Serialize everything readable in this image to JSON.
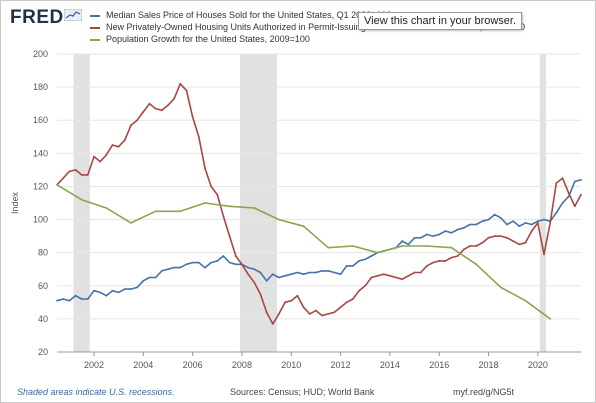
{
  "header": {
    "logo_text": "FRED",
    "tooltip": "View this chart in your browser."
  },
  "footer": {
    "recessions_note": "Shaded areas indicate U.S. recessions.",
    "sources": "Sources: Census; HUD; World Bank",
    "short_url": "myf.red/g/NG5t"
  },
  "colors": {
    "median_price": "#4572a7",
    "permits": "#aa4643",
    "population": "#89a54e",
    "recession": "#e1e1e1"
  },
  "chart_data": {
    "type": "line",
    "title": "",
    "xlabel": "",
    "ylabel": "Index",
    "xlim": [
      2000.5,
      2021.75
    ],
    "ylim": [
      20,
      200
    ],
    "y_ticks": [
      20,
      40,
      60,
      80,
      100,
      120,
      140,
      160,
      180,
      200
    ],
    "x_ticks": [
      2002,
      2004,
      2006,
      2008,
      2010,
      2012,
      2014,
      2016,
      2018,
      2020
    ],
    "grid": true,
    "legend_position": "top-left",
    "recessions": [
      [
        2001.17,
        2001.83
      ],
      [
        2007.92,
        2009.42
      ],
      [
        2020.08,
        2020.33
      ]
    ],
    "series": [
      {
        "name": "Median Sales Price of Houses Sold for the United States, Q1 2020=100",
        "color_key": "median_price",
        "x": [
          2000.5,
          2000.75,
          2001,
          2001.25,
          2001.5,
          2001.75,
          2002,
          2002.25,
          2002.5,
          2002.75,
          2003,
          2003.25,
          2003.5,
          2003.75,
          2004,
          2004.25,
          2004.5,
          2004.75,
          2005,
          2005.25,
          2005.5,
          2005.75,
          2006,
          2006.25,
          2006.5,
          2006.75,
          2007,
          2007.25,
          2007.5,
          2007.75,
          2008,
          2008.25,
          2008.5,
          2008.75,
          2009,
          2009.25,
          2009.5,
          2009.75,
          2010,
          2010.25,
          2010.5,
          2010.75,
          2011,
          2011.25,
          2011.5,
          2011.75,
          2012,
          2012.25,
          2012.5,
          2012.75,
          2013,
          2013.25,
          2013.5,
          2013.75,
          2014,
          2014.25,
          2014.5,
          2014.75,
          2015,
          2015.25,
          2015.5,
          2015.75,
          2016,
          2016.25,
          2016.5,
          2016.75,
          2017,
          2017.25,
          2017.5,
          2017.75,
          2018,
          2018.25,
          2018.5,
          2018.75,
          2019,
          2019.25,
          2019.5,
          2019.75,
          2020,
          2020.25,
          2020.5,
          2020.75,
          2021,
          2021.25,
          2021.5,
          2021.75
        ],
        "values": [
          51,
          52,
          51,
          54,
          52,
          52,
          57,
          56,
          54,
          57,
          56,
          58,
          58,
          59,
          63,
          65,
          65,
          69,
          70,
          71,
          71,
          73,
          74,
          74,
          71,
          74,
          75,
          78,
          74,
          73,
          73,
          71,
          70,
          68,
          63,
          67,
          65,
          66,
          67,
          68,
          67,
          68,
          68,
          69,
          69,
          68,
          67,
          72,
          72,
          75,
          76,
          78,
          80,
          81,
          82,
          83,
          87,
          85,
          89,
          89,
          91,
          90,
          91,
          93,
          92,
          94,
          95,
          97,
          97,
          99,
          100,
          103,
          101,
          97,
          99,
          96,
          98,
          97,
          99,
          100,
          99,
          104,
          110,
          114,
          123,
          124
        ],
        "display": "123.7"
      },
      {
        "name": "New Privately-Owned Housing Units Authorized in Permit-Issuing Places for the United States, 2009=100",
        "color_key": "permits",
        "x": [
          2000.5,
          2000.75,
          2001,
          2001.25,
          2001.5,
          2001.75,
          2002,
          2002.25,
          2002.5,
          2002.75,
          2003,
          2003.25,
          2003.5,
          2003.75,
          2004,
          2004.25,
          2004.5,
          2004.75,
          2005,
          2005.25,
          2005.5,
          2005.75,
          2006,
          2006.25,
          2006.5,
          2006.75,
          2007,
          2007.25,
          2007.5,
          2007.75,
          2008,
          2008.25,
          2008.5,
          2008.75,
          2009,
          2009.25,
          2009.5,
          2009.75,
          2010,
          2010.25,
          2010.5,
          2010.75,
          2011,
          2011.25,
          2011.5,
          2011.75,
          2012,
          2012.25,
          2012.5,
          2012.75,
          2013,
          2013.25,
          2013.5,
          2013.75,
          2014,
          2014.25,
          2014.5,
          2014.75,
          2015,
          2015.25,
          2015.5,
          2015.75,
          2016,
          2016.25,
          2016.5,
          2016.75,
          2017,
          2017.25,
          2017.5,
          2017.75,
          2018,
          2018.25,
          2018.5,
          2018.75,
          2019,
          2019.25,
          2019.5,
          2019.75,
          2020,
          2020.25,
          2020.5,
          2020.75,
          2021,
          2021.25,
          2021.5,
          2021.75
        ],
        "values": [
          121,
          125,
          129,
          130,
          127,
          127,
          138,
          135,
          139,
          145,
          144,
          148,
          157,
          160,
          165,
          170,
          167,
          166,
          169,
          173,
          182,
          178,
          162,
          150,
          131,
          120,
          115,
          102,
          90,
          78,
          73,
          67,
          62,
          55,
          44,
          37,
          43,
          50,
          51,
          54,
          47,
          43,
          45,
          42,
          43,
          44,
          47,
          50,
          52,
          57,
          60,
          65,
          66,
          67,
          66,
          65,
          64,
          66,
          68,
          68,
          72,
          74,
          75,
          75,
          77,
          78,
          82,
          84,
          84,
          86,
          89,
          90,
          90,
          89,
          87,
          85,
          86,
          93,
          98,
          79,
          98,
          122,
          125,
          116,
          108,
          115
        ],
        "display": "114.6"
      },
      {
        "name": "Population Growth for the United States, 2009=100",
        "color_key": "population",
        "x": [
          2000.5,
          2001.5,
          2002.5,
          2003.5,
          2004.5,
          2005.5,
          2006.5,
          2007.5,
          2008.5,
          2009.5,
          2010.5,
          2011.5,
          2012.5,
          2013.5,
          2014.5,
          2015.5,
          2016.5,
          2017.5,
          2018.5,
          2019.5,
          2020.5
        ],
        "values": [
          121,
          112,
          107,
          98,
          105,
          105,
          110,
          108,
          107,
          100,
          96,
          83,
          84,
          80,
          84,
          84,
          83,
          73,
          59,
          51,
          40
        ],
        "display": "40.3"
      }
    ]
  }
}
